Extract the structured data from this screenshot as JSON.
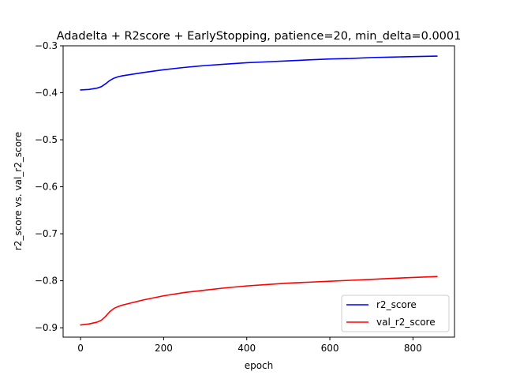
{
  "chart_data": {
    "type": "line",
    "title": "Adadelta + R2score + EarlyStopping, patience=20, min_delta=0.0001",
    "xlabel": "epoch",
    "ylabel": "r2_score vs. val_r2_score",
    "xlim": [
      -42,
      900
    ],
    "ylim": [
      -0.92,
      -0.3
    ],
    "xticks": [
      0,
      200,
      400,
      600,
      800
    ],
    "yticks": [
      -0.9,
      -0.8,
      -0.7,
      -0.6,
      -0.5,
      -0.4,
      -0.3
    ],
    "xtick_labels": [
      "0",
      "200",
      "400",
      "600",
      "800"
    ],
    "ytick_labels": [
      "−0.9",
      "−0.8",
      "−0.7",
      "−0.6",
      "−0.5",
      "−0.4",
      "−0.3"
    ],
    "grid": false,
    "legend_position": "lower-right",
    "series": [
      {
        "name": "r2_score",
        "color": "#0000ff",
        "x": [
          0,
          20,
          40,
          50,
          60,
          70,
          80,
          90,
          100,
          150,
          200,
          250,
          300,
          350,
          400,
          450,
          500,
          550,
          600,
          650,
          700,
          750,
          800,
          858
        ],
        "y": [
          -0.394,
          -0.393,
          -0.39,
          -0.387,
          -0.381,
          -0.374,
          -0.369,
          -0.366,
          -0.364,
          -0.357,
          -0.351,
          -0.346,
          -0.342,
          -0.339,
          -0.336,
          -0.334,
          -0.332,
          -0.33,
          -0.328,
          -0.327,
          -0.325,
          -0.324,
          -0.323,
          -0.322
        ]
      },
      {
        "name": "val_r2_score",
        "color": "#ff0000",
        "x": [
          0,
          20,
          40,
          50,
          60,
          70,
          80,
          90,
          100,
          150,
          200,
          250,
          300,
          350,
          400,
          450,
          500,
          550,
          600,
          650,
          700,
          750,
          800,
          858
        ],
        "y": [
          -0.894,
          -0.892,
          -0.888,
          -0.884,
          -0.876,
          -0.866,
          -0.859,
          -0.855,
          -0.852,
          -0.841,
          -0.832,
          -0.825,
          -0.82,
          -0.815,
          -0.811,
          -0.808,
          -0.805,
          -0.803,
          -0.801,
          -0.799,
          -0.797,
          -0.795,
          -0.793,
          -0.791
        ]
      }
    ]
  }
}
